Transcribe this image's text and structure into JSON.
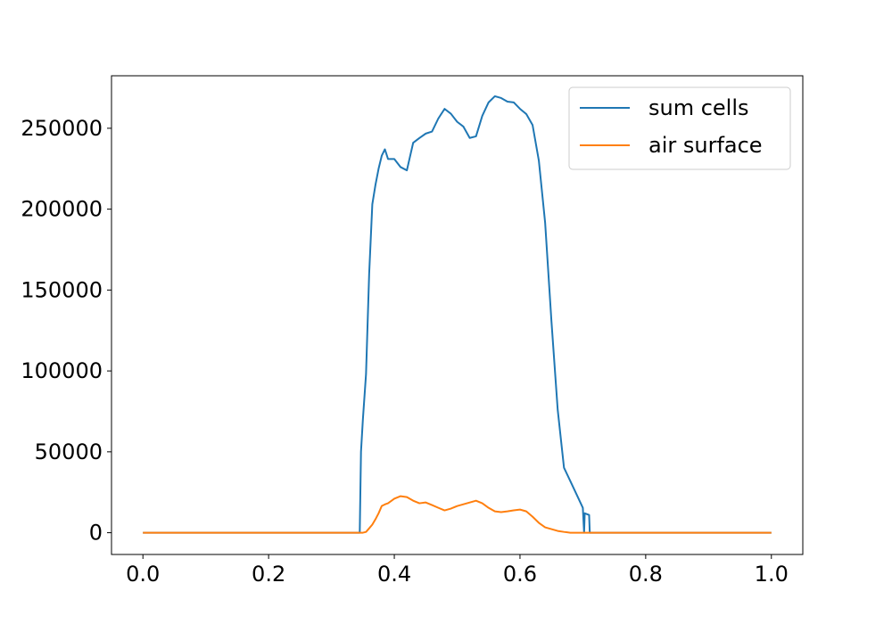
{
  "chart_data": {
    "type": "line",
    "x": [
      0,
      0.345,
      0.347,
      0.35,
      0.355,
      0.36,
      0.365,
      0.37,
      0.375,
      0.38,
      0.385,
      0.39,
      0.4,
      0.41,
      0.42,
      0.43,
      0.44,
      0.45,
      0.46,
      0.47,
      0.48,
      0.49,
      0.5,
      0.51,
      0.52,
      0.53,
      0.54,
      0.55,
      0.56,
      0.57,
      0.58,
      0.59,
      0.6,
      0.61,
      0.62,
      0.63,
      0.64,
      0.65,
      0.66,
      0.67,
      0.68,
      0.69,
      0.7,
      0.702,
      0.703,
      0.71,
      0.711,
      0.72,
      1.0
    ],
    "series": [
      {
        "name": "sum cells",
        "color": "#1f77b4",
        "values": [
          0,
          0,
          50000,
          70000,
          98000,
          160000,
          203000,
          215000,
          225000,
          233000,
          237000,
          231000,
          231000,
          226000,
          224000,
          241000,
          244000,
          246700,
          248000,
          256000,
          262000,
          259000,
          254000,
          251000,
          244000,
          245000,
          257700,
          266000,
          269800,
          268700,
          266500,
          266000,
          262000,
          258800,
          252000,
          230000,
          191600,
          131000,
          76000,
          40200,
          32000,
          23700,
          15400,
          0,
          12000,
          11000,
          0,
          0,
          0
        ]
      },
      {
        "name": "air surface",
        "color": "#ff7f0e",
        "values": [
          0,
          0,
          0,
          0,
          500,
          2700,
          5000,
          8300,
          12000,
          16500,
          17500,
          18200,
          21000,
          22600,
          22000,
          19800,
          18200,
          18700,
          17100,
          15400,
          13800,
          14900,
          16500,
          17600,
          18700,
          19800,
          18200,
          15400,
          13200,
          12700,
          13200,
          13800,
          14300,
          13200,
          9900,
          6100,
          3300,
          2200,
          1100,
          500,
          0,
          0,
          0,
          0,
          0,
          0,
          0,
          0,
          0
        ]
      }
    ],
    "xlim": [
      -0.05,
      1.05
    ],
    "xticks": [
      {
        "value": 0,
        "label": "0.0"
      },
      0.2,
      0.4,
      0.6,
      0.8,
      {
        "value": 1,
        "label": "1.0"
      }
    ],
    "ylim": [
      -13450,
      282450
    ],
    "yticks": [
      0,
      50000,
      100000,
      150000,
      200000,
      250000
    ],
    "grid": false,
    "legend": "upper right"
  }
}
